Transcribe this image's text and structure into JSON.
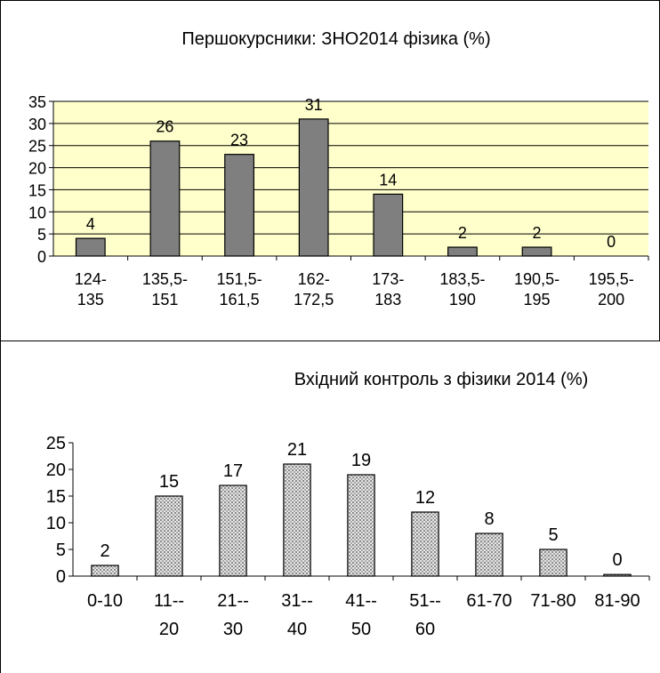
{
  "chart_data": [
    {
      "type": "bar",
      "title": "Першокурсники: ЗНО2014 фізика (%)",
      "categories": [
        [
          "124-",
          "135"
        ],
        [
          "135,5-",
          "151"
        ],
        [
          "151,5-",
          "161,5"
        ],
        [
          "162-",
          "172,5"
        ],
        [
          "173-",
          "183"
        ],
        [
          "183,5-",
          "190"
        ],
        [
          "190,5-",
          "195"
        ],
        [
          "195,5-",
          "200"
        ]
      ],
      "values": [
        4,
        26,
        23,
        31,
        14,
        2,
        2,
        0
      ],
      "data_labels": [
        "4",
        "26",
        "23",
        "31",
        "14",
        "2",
        "2",
        "0"
      ],
      "yticks": [
        "0",
        "5",
        "10",
        "15",
        "20",
        "25",
        "30",
        "35"
      ],
      "ylim": [
        0,
        35
      ],
      "grid": true,
      "bar_color": "#7f7f7f",
      "plot_background": "#ffffcc"
    },
    {
      "type": "bar",
      "title": "Вхідний контроль з фізики 2014 (%)",
      "categories": [
        [
          "0-10"
        ],
        [
          "11--",
          "20"
        ],
        [
          "21--",
          "30"
        ],
        [
          "31--",
          "40"
        ],
        [
          "41--",
          "50"
        ],
        [
          "51--",
          "60"
        ],
        [
          "61-70"
        ],
        [
          "71-80"
        ],
        [
          "81-90"
        ]
      ],
      "values": [
        2,
        15,
        17,
        21,
        19,
        12,
        8,
        5,
        0.3
      ],
      "data_labels": [
        "2",
        "15",
        "17",
        "21",
        "19",
        "12",
        "8",
        "5",
        "0"
      ],
      "yticks": [
        "0",
        "5",
        "10",
        "15",
        "20",
        "25"
      ],
      "ylim": [
        0,
        25
      ],
      "grid": false,
      "bar_pattern": "dotted-gray",
      "plot_background": "#ffffff"
    }
  ]
}
